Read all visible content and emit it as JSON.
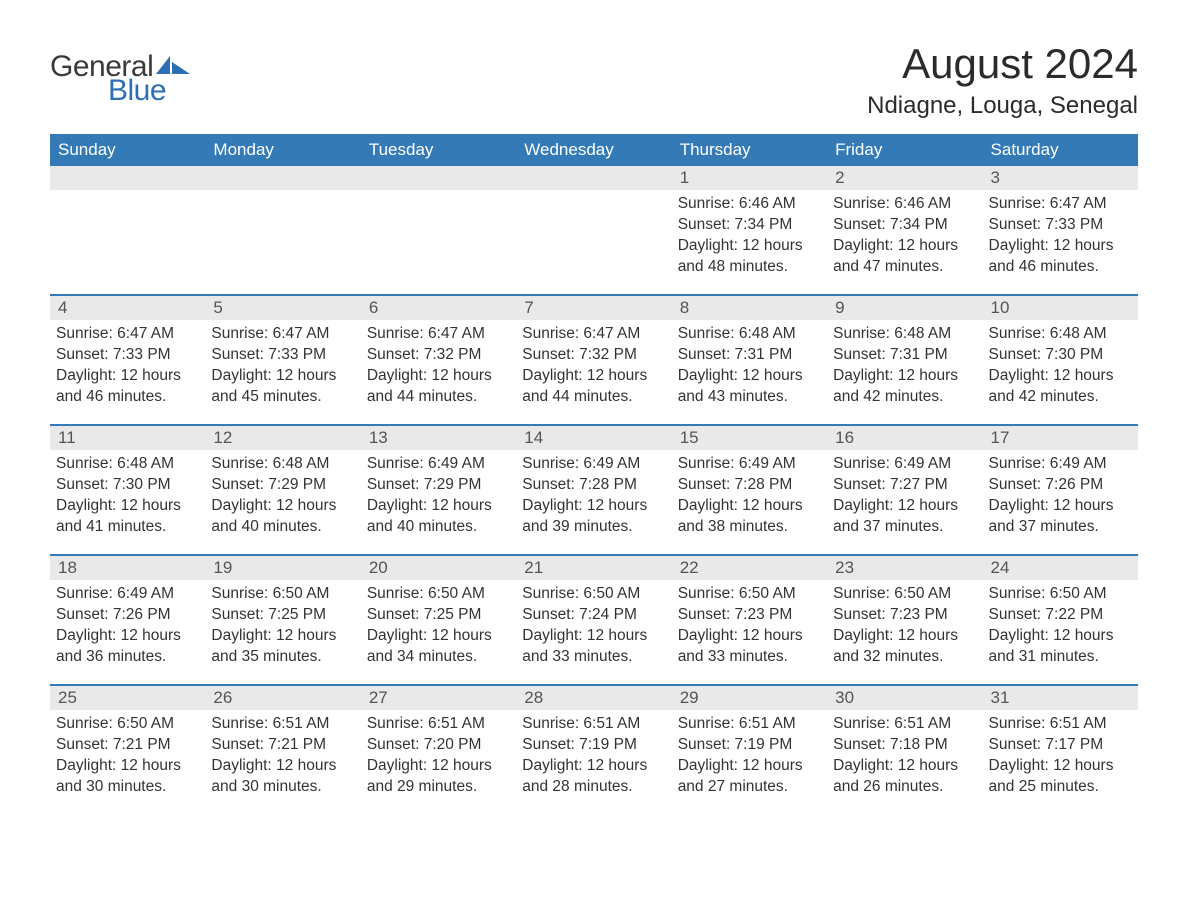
{
  "logo": {
    "text_general": "General",
    "text_blue": "Blue",
    "flag_color": "#2d6fb5"
  },
  "title": "August 2024",
  "location": "Ndiagne, Louga, Senegal",
  "header_bg": "#337ab7",
  "daynum_bg": "#e9e9e9",
  "week_border_color": "#337ab7",
  "day_names": [
    "Sunday",
    "Monday",
    "Tuesday",
    "Wednesday",
    "Thursday",
    "Friday",
    "Saturday"
  ],
  "weeks": [
    [
      {
        "empty": true
      },
      {
        "empty": true
      },
      {
        "empty": true
      },
      {
        "empty": true
      },
      {
        "day": "1",
        "sunrise": "Sunrise: 6:46 AM",
        "sunset": "Sunset: 7:34 PM",
        "daylight1": "Daylight: 12 hours",
        "daylight2": "and 48 minutes."
      },
      {
        "day": "2",
        "sunrise": "Sunrise: 6:46 AM",
        "sunset": "Sunset: 7:34 PM",
        "daylight1": "Daylight: 12 hours",
        "daylight2": "and 47 minutes."
      },
      {
        "day": "3",
        "sunrise": "Sunrise: 6:47 AM",
        "sunset": "Sunset: 7:33 PM",
        "daylight1": "Daylight: 12 hours",
        "daylight2": "and 46 minutes."
      }
    ],
    [
      {
        "day": "4",
        "sunrise": "Sunrise: 6:47 AM",
        "sunset": "Sunset: 7:33 PM",
        "daylight1": "Daylight: 12 hours",
        "daylight2": "and 46 minutes."
      },
      {
        "day": "5",
        "sunrise": "Sunrise: 6:47 AM",
        "sunset": "Sunset: 7:33 PM",
        "daylight1": "Daylight: 12 hours",
        "daylight2": "and 45 minutes."
      },
      {
        "day": "6",
        "sunrise": "Sunrise: 6:47 AM",
        "sunset": "Sunset: 7:32 PM",
        "daylight1": "Daylight: 12 hours",
        "daylight2": "and 44 minutes."
      },
      {
        "day": "7",
        "sunrise": "Sunrise: 6:47 AM",
        "sunset": "Sunset: 7:32 PM",
        "daylight1": "Daylight: 12 hours",
        "daylight2": "and 44 minutes."
      },
      {
        "day": "8",
        "sunrise": "Sunrise: 6:48 AM",
        "sunset": "Sunset: 7:31 PM",
        "daylight1": "Daylight: 12 hours",
        "daylight2": "and 43 minutes."
      },
      {
        "day": "9",
        "sunrise": "Sunrise: 6:48 AM",
        "sunset": "Sunset: 7:31 PM",
        "daylight1": "Daylight: 12 hours",
        "daylight2": "and 42 minutes."
      },
      {
        "day": "10",
        "sunrise": "Sunrise: 6:48 AM",
        "sunset": "Sunset: 7:30 PM",
        "daylight1": "Daylight: 12 hours",
        "daylight2": "and 42 minutes."
      }
    ],
    [
      {
        "day": "11",
        "sunrise": "Sunrise: 6:48 AM",
        "sunset": "Sunset: 7:30 PM",
        "daylight1": "Daylight: 12 hours",
        "daylight2": "and 41 minutes."
      },
      {
        "day": "12",
        "sunrise": "Sunrise: 6:48 AM",
        "sunset": "Sunset: 7:29 PM",
        "daylight1": "Daylight: 12 hours",
        "daylight2": "and 40 minutes."
      },
      {
        "day": "13",
        "sunrise": "Sunrise: 6:49 AM",
        "sunset": "Sunset: 7:29 PM",
        "daylight1": "Daylight: 12 hours",
        "daylight2": "and 40 minutes."
      },
      {
        "day": "14",
        "sunrise": "Sunrise: 6:49 AM",
        "sunset": "Sunset: 7:28 PM",
        "daylight1": "Daylight: 12 hours",
        "daylight2": "and 39 minutes."
      },
      {
        "day": "15",
        "sunrise": "Sunrise: 6:49 AM",
        "sunset": "Sunset: 7:28 PM",
        "daylight1": "Daylight: 12 hours",
        "daylight2": "and 38 minutes."
      },
      {
        "day": "16",
        "sunrise": "Sunrise: 6:49 AM",
        "sunset": "Sunset: 7:27 PM",
        "daylight1": "Daylight: 12 hours",
        "daylight2": "and 37 minutes."
      },
      {
        "day": "17",
        "sunrise": "Sunrise: 6:49 AM",
        "sunset": "Sunset: 7:26 PM",
        "daylight1": "Daylight: 12 hours",
        "daylight2": "and 37 minutes."
      }
    ],
    [
      {
        "day": "18",
        "sunrise": "Sunrise: 6:49 AM",
        "sunset": "Sunset: 7:26 PM",
        "daylight1": "Daylight: 12 hours",
        "daylight2": "and 36 minutes."
      },
      {
        "day": "19",
        "sunrise": "Sunrise: 6:50 AM",
        "sunset": "Sunset: 7:25 PM",
        "daylight1": "Daylight: 12 hours",
        "daylight2": "and 35 minutes."
      },
      {
        "day": "20",
        "sunrise": "Sunrise: 6:50 AM",
        "sunset": "Sunset: 7:25 PM",
        "daylight1": "Daylight: 12 hours",
        "daylight2": "and 34 minutes."
      },
      {
        "day": "21",
        "sunrise": "Sunrise: 6:50 AM",
        "sunset": "Sunset: 7:24 PM",
        "daylight1": "Daylight: 12 hours",
        "daylight2": "and 33 minutes."
      },
      {
        "day": "22",
        "sunrise": "Sunrise: 6:50 AM",
        "sunset": "Sunset: 7:23 PM",
        "daylight1": "Daylight: 12 hours",
        "daylight2": "and 33 minutes."
      },
      {
        "day": "23",
        "sunrise": "Sunrise: 6:50 AM",
        "sunset": "Sunset: 7:23 PM",
        "daylight1": "Daylight: 12 hours",
        "daylight2": "and 32 minutes."
      },
      {
        "day": "24",
        "sunrise": "Sunrise: 6:50 AM",
        "sunset": "Sunset: 7:22 PM",
        "daylight1": "Daylight: 12 hours",
        "daylight2": "and 31 minutes."
      }
    ],
    [
      {
        "day": "25",
        "sunrise": "Sunrise: 6:50 AM",
        "sunset": "Sunset: 7:21 PM",
        "daylight1": "Daylight: 12 hours",
        "daylight2": "and 30 minutes."
      },
      {
        "day": "26",
        "sunrise": "Sunrise: 6:51 AM",
        "sunset": "Sunset: 7:21 PM",
        "daylight1": "Daylight: 12 hours",
        "daylight2": "and 30 minutes."
      },
      {
        "day": "27",
        "sunrise": "Sunrise: 6:51 AM",
        "sunset": "Sunset: 7:20 PM",
        "daylight1": "Daylight: 12 hours",
        "daylight2": "and 29 minutes."
      },
      {
        "day": "28",
        "sunrise": "Sunrise: 6:51 AM",
        "sunset": "Sunset: 7:19 PM",
        "daylight1": "Daylight: 12 hours",
        "daylight2": "and 28 minutes."
      },
      {
        "day": "29",
        "sunrise": "Sunrise: 6:51 AM",
        "sunset": "Sunset: 7:19 PM",
        "daylight1": "Daylight: 12 hours",
        "daylight2": "and 27 minutes."
      },
      {
        "day": "30",
        "sunrise": "Sunrise: 6:51 AM",
        "sunset": "Sunset: 7:18 PM",
        "daylight1": "Daylight: 12 hours",
        "daylight2": "and 26 minutes."
      },
      {
        "day": "31",
        "sunrise": "Sunrise: 6:51 AM",
        "sunset": "Sunset: 7:17 PM",
        "daylight1": "Daylight: 12 hours",
        "daylight2": "and 25 minutes."
      }
    ]
  ]
}
